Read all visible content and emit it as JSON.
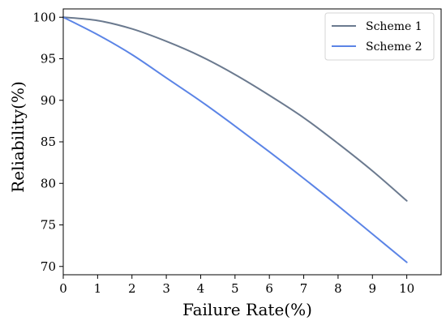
{
  "chart_data": {
    "type": "line",
    "title": "",
    "xlabel": "Failure Rate(%)",
    "ylabel": "Reliability(%)",
    "xlim": [
      0,
      11
    ],
    "ylim": [
      69,
      101
    ],
    "xticks": [
      0,
      1,
      2,
      3,
      4,
      5,
      6,
      7,
      8,
      9,
      10
    ],
    "yticks": [
      70,
      75,
      80,
      85,
      90,
      95,
      100
    ],
    "grid": false,
    "legend_position": "top-right",
    "x": [
      0,
      1,
      2,
      3,
      4,
      5,
      6,
      7,
      8,
      9,
      10
    ],
    "series": [
      {
        "name": "Scheme 1",
        "color": "#6b7a8f",
        "values": [
          100,
          99.6,
          98.6,
          97.1,
          95.3,
          93.1,
          90.6,
          87.9,
          84.8,
          81.5,
          77.9
        ]
      },
      {
        "name": "Scheme 2",
        "color": "#5b84e6",
        "values": [
          100,
          97.9,
          95.5,
          92.7,
          89.9,
          86.9,
          83.8,
          80.6,
          77.3,
          73.9,
          70.5
        ]
      }
    ]
  }
}
